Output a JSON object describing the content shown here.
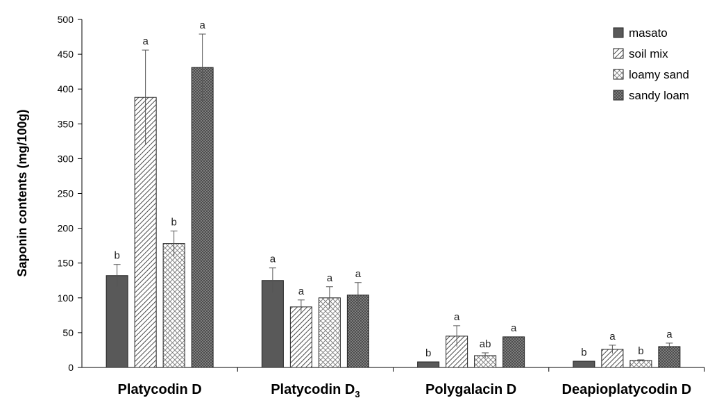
{
  "chart_data": {
    "type": "bar",
    "title": "",
    "xlabel": "",
    "ylabel": "Saponin contents (mg/100g)",
    "ylim": [
      0,
      500
    ],
    "yticks": [
      0,
      50,
      100,
      150,
      200,
      250,
      300,
      350,
      400,
      450,
      500
    ],
    "categories": [
      {
        "main": "Platycodin D",
        "sub": ""
      },
      {
        "main": "Platycodin D",
        "sub": "3"
      },
      {
        "main": "Polygalacin D",
        "sub": ""
      },
      {
        "main": "Deapioplatycodin D",
        "sub": ""
      }
    ],
    "legend_position": "top-right",
    "grid": false,
    "series": [
      {
        "name": "masato",
        "pattern": "solid",
        "color": "#595959",
        "values": [
          132,
          125,
          8,
          9
        ],
        "errors": [
          16,
          18,
          0,
          0
        ],
        "labels": [
          "b",
          "a",
          "b",
          "b"
        ]
      },
      {
        "name": "soil mix",
        "pattern": "diagonal",
        "color": "#595959",
        "values": [
          388,
          87,
          45,
          26
        ],
        "errors": [
          68,
          10,
          15,
          6
        ],
        "labels": [
          "a",
          "a",
          "a",
          "a"
        ]
      },
      {
        "name": "loamy sand",
        "pattern": "crosshatch",
        "color": "#595959",
        "values": [
          178,
          100,
          17,
          10
        ],
        "errors": [
          18,
          16,
          4,
          1
        ],
        "labels": [
          "b",
          "a",
          "ab",
          "b"
        ]
      },
      {
        "name": "sandy loam",
        "pattern": "dense",
        "color": "#595959",
        "values": [
          431,
          104,
          44,
          30
        ],
        "errors": [
          48,
          18,
          0,
          5
        ],
        "labels": [
          "a",
          "a",
          "a",
          "a"
        ]
      }
    ]
  }
}
